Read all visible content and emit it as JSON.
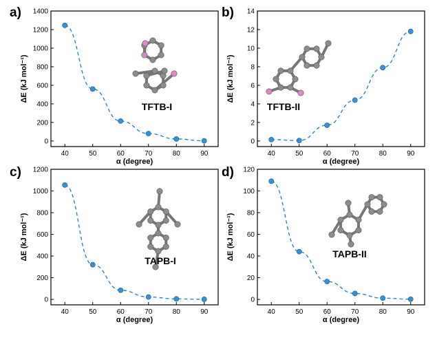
{
  "chart_data": [
    {
      "panel_label": "a)",
      "type": "scatter",
      "molecule_label": "TFTB-I",
      "xlabel": "α (degree)",
      "ylabel": "ΔE (kJ mol⁻¹)",
      "x_ticks": [
        40,
        50,
        60,
        70,
        80,
        90
      ],
      "y_ticks": [
        0,
        200,
        400,
        600,
        800,
        1000,
        1200,
        1400
      ],
      "xlim": [
        35,
        95
      ],
      "ylim": [
        -60,
        1400
      ],
      "fit_line": "dashed",
      "series": [
        {
          "x": [
            40,
            50,
            60,
            70,
            80,
            90
          ],
          "values": [
            1245,
            560,
            215,
            80,
            22,
            2
          ]
        }
      ]
    },
    {
      "panel_label": "b)",
      "type": "scatter",
      "molecule_label": "TFTB-II",
      "xlabel": "α (degree)",
      "ylabel": "ΔE (kJ mol⁻¹)",
      "x_ticks": [
        40,
        50,
        60,
        70,
        80,
        90
      ],
      "y_ticks": [
        0,
        2,
        4,
        6,
        8,
        10,
        12,
        14
      ],
      "xlim": [
        35,
        95
      ],
      "ylim": [
        -0.6,
        14
      ],
      "fit_line": "dashed",
      "series": [
        {
          "x": [
            40,
            50,
            60,
            70,
            80,
            90
          ],
          "values": [
            0.15,
            0.05,
            1.7,
            4.4,
            7.9,
            11.8
          ]
        }
      ]
    },
    {
      "panel_label": "c)",
      "type": "scatter",
      "molecule_label": "TAPB-I",
      "xlabel": "α (degree)",
      "ylabel": "ΔE (kJ mol⁻¹)",
      "x_ticks": [
        40,
        50,
        60,
        70,
        80,
        90
      ],
      "y_ticks": [
        0,
        200,
        400,
        600,
        800,
        1000,
        1200
      ],
      "xlim": [
        35,
        95
      ],
      "ylim": [
        -50,
        1200
      ],
      "fit_line": "dashed",
      "series": [
        {
          "x": [
            40,
            50,
            60,
            70,
            80,
            90
          ],
          "values": [
            1055,
            320,
            85,
            22,
            5,
            1
          ]
        }
      ]
    },
    {
      "panel_label": "d)",
      "type": "scatter",
      "molecule_label": "TAPB-II",
      "xlabel": "α (degree)",
      "ylabel": "ΔE (kJ mol⁻¹)",
      "x_ticks": [
        40,
        50,
        60,
        70,
        80,
        90
      ],
      "y_ticks": [
        0,
        20,
        40,
        60,
        80,
        100,
        120
      ],
      "xlim": [
        35,
        95
      ],
      "ylim": [
        -5,
        120
      ],
      "fit_line": "dashed",
      "series": [
        {
          "x": [
            40,
            50,
            60,
            70,
            80,
            90
          ],
          "values": [
            109,
            44,
            16.5,
            5.5,
            1.2,
            0.2
          ]
        }
      ]
    }
  ],
  "colors": {
    "points": "#3a8fd0",
    "fit_line": "#2b86c5",
    "atoms": "#8c8c8c",
    "heteroatoms": "#d98bc4"
  }
}
